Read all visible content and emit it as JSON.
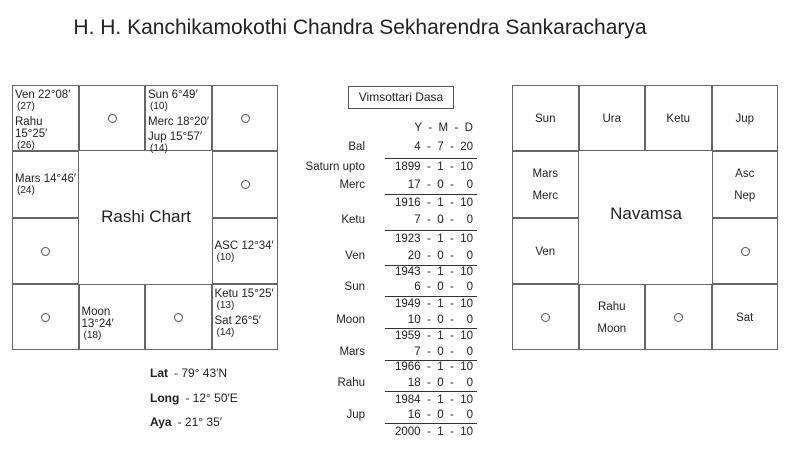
{
  "title": "H. H. Kanchikamokothi Chandra Sekharendra Sankaracharya",
  "rashi": {
    "label": "Rashi Chart",
    "cells": [
      {
        "r": 0,
        "c": 0,
        "planets": [
          {
            "t": "Ven 22°08′",
            "n": "(27)"
          },
          {
            "t": "Rahu 15°25′",
            "n": "(26)"
          }
        ]
      },
      {
        "r": 0,
        "c": 1,
        "empty": true
      },
      {
        "r": 0,
        "c": 2,
        "planets": [
          {
            "t": "Sun 6°49′",
            "n": "(10)"
          },
          {
            "t": "Merc 18°20′",
            "n": ""
          },
          {
            "t": "Jup 15°57′",
            "n": "(14)"
          }
        ]
      },
      {
        "r": 0,
        "c": 3,
        "empty": true
      },
      {
        "r": 1,
        "c": 0,
        "planets": [
          {
            "t": "Mars 14°46′",
            "n": "(24)"
          }
        ]
      },
      {
        "r": 1,
        "c": 3,
        "empty": true
      },
      {
        "r": 2,
        "c": 0,
        "empty": true
      },
      {
        "r": 2,
        "c": 3,
        "planets": [
          {
            "t": "ASC 12°34′",
            "n": "(10)"
          }
        ]
      },
      {
        "r": 3,
        "c": 0,
        "empty": true
      },
      {
        "r": 3,
        "c": 1,
        "planets": [
          {
            "t": "Moon 13°24′",
            "n": "(18)"
          }
        ]
      },
      {
        "r": 3,
        "c": 2,
        "empty": true
      },
      {
        "r": 3,
        "c": 3,
        "planets": [
          {
            "t": "Ketu 15°25′",
            "n": "(13)"
          },
          {
            "t": "Sat 26°5′",
            "n": "(14)"
          }
        ]
      }
    ]
  },
  "navamsa": {
    "label": "Navamsa",
    "cells": [
      {
        "r": 0,
        "c": 0,
        "items": [
          "Sun"
        ]
      },
      {
        "r": 0,
        "c": 1,
        "items": [
          "Ura"
        ]
      },
      {
        "r": 0,
        "c": 2,
        "items": [
          "Ketu"
        ]
      },
      {
        "r": 0,
        "c": 3,
        "items": [
          "Jup"
        ]
      },
      {
        "r": 1,
        "c": 0,
        "items": [
          "Mars",
          "Merc"
        ]
      },
      {
        "r": 1,
        "c": 3,
        "items": [
          "Asc",
          "Nep"
        ]
      },
      {
        "r": 2,
        "c": 0,
        "items": [
          "Ven"
        ]
      },
      {
        "r": 2,
        "c": 3,
        "empty": true
      },
      {
        "r": 3,
        "c": 0,
        "empty": true
      },
      {
        "r": 3,
        "c": 1,
        "items": [
          "Rahu",
          "Moon"
        ]
      },
      {
        "r": 3,
        "c": 2,
        "empty": true
      },
      {
        "r": 3,
        "c": 3,
        "items": [
          "Sat"
        ]
      }
    ]
  },
  "dasa": {
    "title": "Vimsottari Dasa",
    "header": "Y  -  M  -  D",
    "balance": {
      "label": "Bal",
      "value": "4  -  7  -  20"
    },
    "start": {
      "label": "Saturn upto",
      "value": "1899  -  1  -  10"
    },
    "periods": [
      {
        "planet": "Merc",
        "duration": "17  -  0  -    0",
        "end": "1916  -  1  -  10"
      },
      {
        "planet": "Ketu",
        "duration": "7  -  0  -    0",
        "end": "1923  -  1  -  10"
      },
      {
        "planet": "Ven",
        "duration": "20  -  0  -    0",
        "end": "1943  -  1  -  10"
      },
      {
        "planet": "Sun",
        "duration": "6  -  0  -    0",
        "end": "1949  -  1  -  10"
      },
      {
        "planet": "Moon",
        "duration": "10  -  0  -    0",
        "end": "1959  -  1  -  10"
      },
      {
        "planet": "Mars",
        "duration": "7  -  0  -    0",
        "end": "1966  -  1  -  10"
      },
      {
        "planet": "Rahu",
        "duration": "18  -  0  -    0",
        "end": "1984  -  1  -  10"
      },
      {
        "planet": "Jup",
        "duration": "16  -  0  -    0",
        "end": "2000  -  1  -  10"
      }
    ]
  },
  "info": [
    {
      "label": "Lat",
      "value": "-  79° 43′N"
    },
    {
      "label": "Long",
      "value": "-  12° 50′E"
    },
    {
      "label": "Aya",
      "value": "-  21° 35′"
    }
  ]
}
